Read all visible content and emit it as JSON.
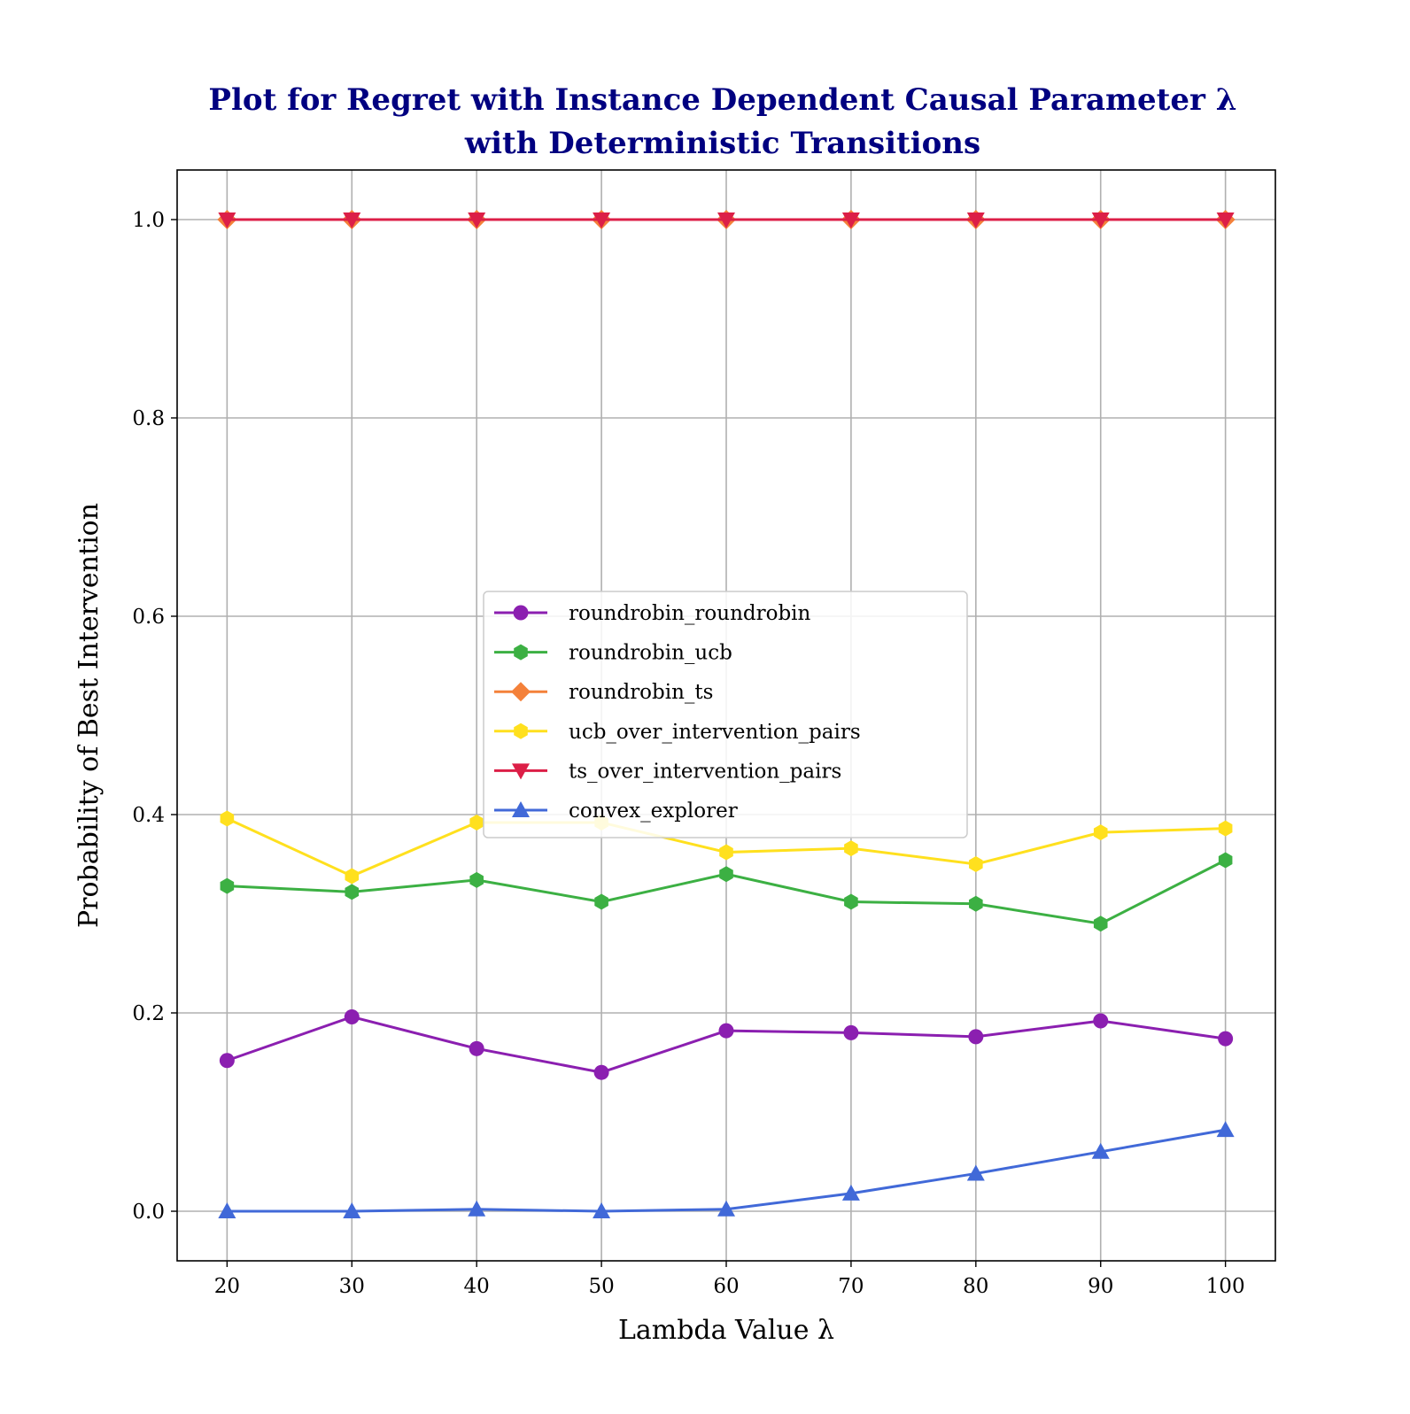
{
  "chart_data": {
    "type": "line",
    "title_lines": [
      "Plot for Regret with Instance Dependent Causal Parameter λ",
      "with Deterministic Transitions"
    ],
    "title_color": "#000080",
    "xlabel": "Lambda Value λ",
    "ylabel": "Probability of Best Intervention",
    "x": [
      20,
      30,
      40,
      50,
      60,
      70,
      80,
      90,
      100
    ],
    "xlim": [
      16,
      104
    ],
    "ylim": [
      -0.05,
      1.05
    ],
    "xticks": [
      20,
      30,
      40,
      50,
      60,
      70,
      80,
      90,
      100
    ],
    "yticks": [
      0.0,
      0.2,
      0.4,
      0.6,
      0.8,
      1.0
    ],
    "xtick_labels": [
      "20",
      "30",
      "40",
      "50",
      "60",
      "70",
      "80",
      "90",
      "100"
    ],
    "ytick_labels": [
      "0.0",
      "0.2",
      "0.4",
      "0.6",
      "0.8",
      "1.0"
    ],
    "grid": true,
    "legend_position": "center",
    "series": [
      {
        "name": "roundrobin_roundrobin",
        "color": "#8b1fb0",
        "marker": "circle",
        "values": [
          0.152,
          0.196,
          0.164,
          0.14,
          0.182,
          0.18,
          0.176,
          0.192,
          0.174
        ]
      },
      {
        "name": "roundrobin_ucb",
        "color": "#3cb043",
        "marker": "hexagon",
        "values": [
          0.328,
          0.322,
          0.334,
          0.312,
          0.34,
          0.312,
          0.31,
          0.29,
          0.354
        ]
      },
      {
        "name": "roundrobin_ts",
        "color": "#f4813a",
        "marker": "diamond",
        "values": [
          1.0,
          1.0,
          1.0,
          1.0,
          1.0,
          1.0,
          1.0,
          1.0,
          1.0
        ]
      },
      {
        "name": "ucb_over_intervention_pairs",
        "color": "#ffe01e",
        "marker": "hexagon",
        "values": [
          0.396,
          0.338,
          0.392,
          0.392,
          0.362,
          0.366,
          0.35,
          0.382,
          0.386
        ]
      },
      {
        "name": "ts_over_intervention_pairs",
        "color": "#dc1f47",
        "marker": "triangle-down",
        "values": [
          1.0,
          1.0,
          1.0,
          1.0,
          1.0,
          1.0,
          1.0,
          1.0,
          1.0
        ]
      },
      {
        "name": "convex_explorer",
        "color": "#4169d8",
        "marker": "triangle-up",
        "values": [
          0.0,
          0.0,
          0.002,
          0.0,
          0.002,
          0.018,
          0.038,
          0.06,
          0.082
        ]
      }
    ]
  }
}
